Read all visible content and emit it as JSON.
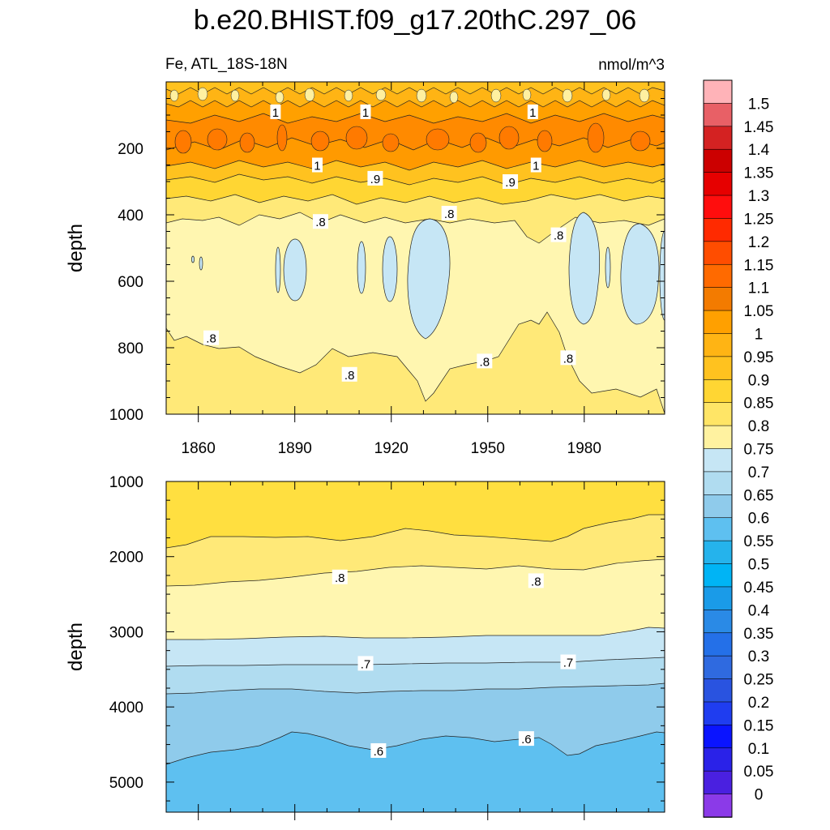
{
  "title": "b.e20.BHIST.f09_g17.20thC.297_06",
  "subtitle_left": "Fe, ATL_18S-18N",
  "subtitle_right": "nmol/m^3",
  "chart_data": [
    {
      "type": "heatmap",
      "panel": "upper",
      "ylabel": "depth",
      "y_reversed": true,
      "ylim": [
        1000,
        0
      ],
      "xlim": [
        1850,
        2005
      ],
      "x_ticks": [
        1860,
        1890,
        1920,
        1950,
        1980
      ],
      "y_ticks": [
        200,
        400,
        600,
        800,
        1000
      ],
      "contour_labels": [
        {
          "text": "1",
          "x": 1884,
          "y": 90
        },
        {
          "text": "1",
          "x": 1912,
          "y": 90
        },
        {
          "text": "1",
          "x": 1964,
          "y": 90
        },
        {
          "text": "1",
          "x": 1897,
          "y": 250
        },
        {
          "text": "1",
          "x": 1965,
          "y": 250
        },
        {
          "text": ".9",
          "x": 1915,
          "y": 290
        },
        {
          "text": ".9",
          "x": 1957,
          "y": 300
        },
        {
          "text": ".8",
          "x": 1898,
          "y": 420
        },
        {
          "text": ".8",
          "x": 1938,
          "y": 395
        },
        {
          "text": ".8",
          "x": 1972,
          "y": 460
        },
        {
          "text": ".8",
          "x": 1864,
          "y": 770
        },
        {
          "text": ".8",
          "x": 1907,
          "y": 880
        },
        {
          "text": ".8",
          "x": 1949,
          "y": 840
        },
        {
          "text": ".8",
          "x": 1975,
          "y": 830
        }
      ]
    },
    {
      "type": "heatmap",
      "panel": "lower",
      "ylabel": "depth",
      "y_reversed": true,
      "ylim": [
        5400,
        1000
      ],
      "xlim": [
        1850,
        2005
      ],
      "y_ticks": [
        1000,
        2000,
        3000,
        4000,
        5000
      ],
      "contour_labels": [
        {
          "text": ".8",
          "x": 1904,
          "y": 2270
        },
        {
          "text": ".8",
          "x": 1965,
          "y": 2320
        },
        {
          "text": ".7",
          "x": 1912,
          "y": 3420
        },
        {
          "text": ".7",
          "x": 1975,
          "y": 3400
        },
        {
          "text": ".6",
          "x": 1916,
          "y": 4580
        },
        {
          "text": ".6",
          "x": 1962,
          "y": 4420
        }
      ]
    }
  ],
  "colorbar": {
    "levels": [
      "1.5",
      "1.45",
      "1.4",
      "1.35",
      "1.3",
      "1.25",
      "1.2",
      "1.15",
      "1.1",
      "1.05",
      "1",
      "0.95",
      "0.9",
      "0.85",
      "0.8",
      "0.75",
      "0.7",
      "0.65",
      "0.6",
      "0.55",
      "0.5",
      "0.45",
      "0.4",
      "0.35",
      "0.3",
      "0.25",
      "0.2",
      "0.15",
      "0.1",
      "0.05",
      "0"
    ],
    "colors": [
      "#ffb3b8",
      "#e86066",
      "#d42222",
      "#cc0000",
      "#e60000",
      "#ff0d0d",
      "#ff2a00",
      "#ff4d00",
      "#ff6a00",
      "#f37b00",
      "#ffa000",
      "#ffb414",
      "#ffc21f",
      "#ffd633",
      "#ffe566",
      "#fff2a0",
      "#c6e6f5",
      "#b0dcf0",
      "#8fcbeb",
      "#5ec0f0",
      "#25b3ec",
      "#00b4f5",
      "#1a9be8",
      "#2a8ae6",
      "#2470e8",
      "#2f6ae0",
      "#2953e0",
      "#1f3df0",
      "#0a14ff",
      "#2a22e8",
      "#4a20e0",
      "#8b3ae8"
    ]
  }
}
